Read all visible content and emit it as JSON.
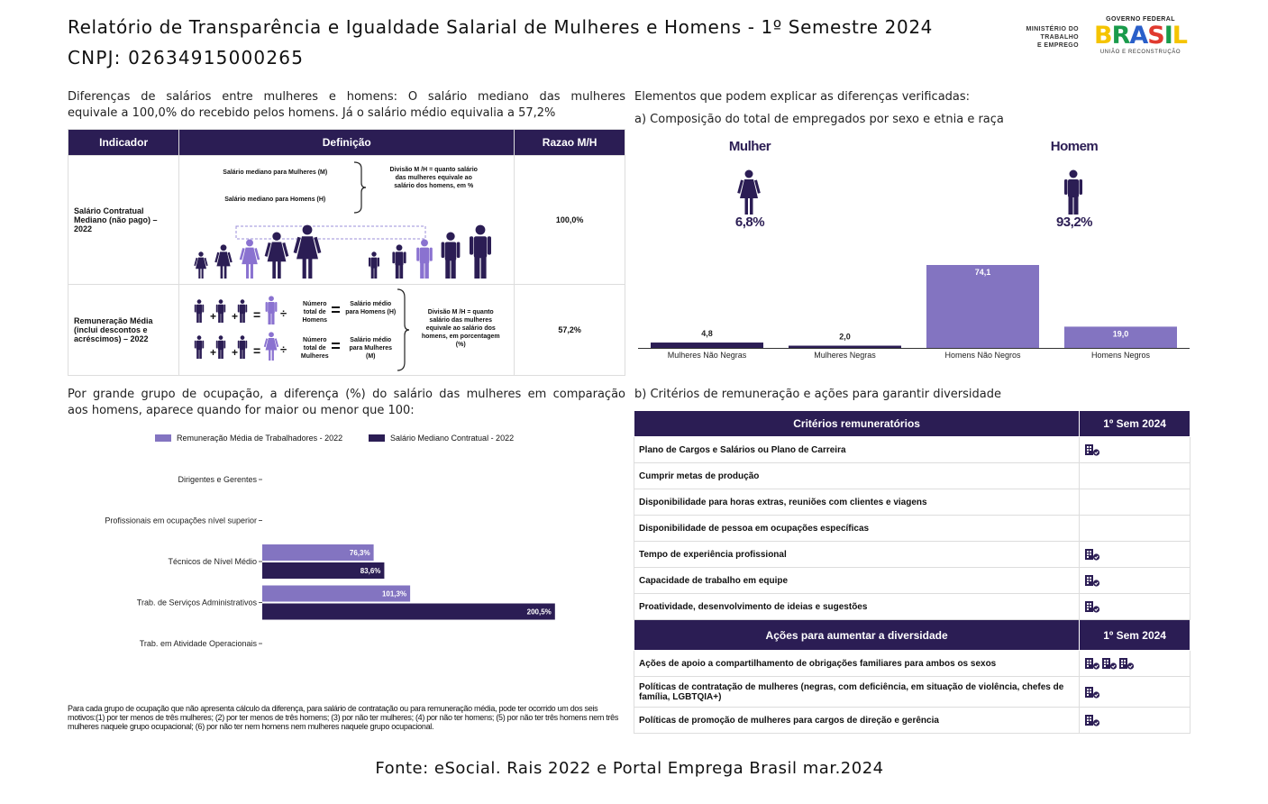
{
  "header": {
    "title": "Relatório de Transparência e Igualdade Salarial de Mulheres e Homens - 1º Semestre 2024",
    "cnpj": "CNPJ: 02634915000265",
    "ministry_lines": [
      "MINISTÉRIO DO",
      "TRABALHO",
      "E EMPREGO"
    ],
    "logo_top": "GOVERNO FEDERAL",
    "logo_word": "BRASIL",
    "logo_sub": "UNIÃO E RECONSTRUÇÃO",
    "logo_colors": [
      "#f5c400",
      "#1a9b4b",
      "#2a5fc9",
      "#e03a2f",
      "#1a9b4b",
      "#f5c400"
    ]
  },
  "left": {
    "intro_lines": [
      "Diferenças de salários entre mulheres e homens: O salário mediano das mulheres",
      "equivale a 100,0% do recebido pelos homens. Já o salário médio equivalia a 57,2%"
    ],
    "table": {
      "headers": [
        "Indicador",
        "Definição",
        "Razao M/H"
      ],
      "row1": {
        "indicator": "Salário Contratual Mediano (não pago) – 2022",
        "def_m": "Salário mediano para Mulheres (M)",
        "def_h": "Salário mediano para Homens (H)",
        "def_div": "Divisão M /H = quanto salário das mulheres equivale ao salário dos homens, em %",
        "ratio": "100,0%"
      },
      "row2": {
        "indicator": "Remuneração Média (inclui descontos e acréscimos) – 2022",
        "count_h": "Número total de Homens",
        "avg_h": "Salário médio para Homens (H)",
        "count_m": "Número total de Mulheres",
        "avg_m": "Salário médio para Mulheres (M)",
        "def_div": "Divisão M /H = quanto salário das mulheres equivale ao salário dos homens, em porcentagem (%)",
        "ratio": "57,2%"
      }
    },
    "occupation_intro_lines": [
      "Por grande grupo de ocupação, a diferença (%) do salário das mulheres em comparação",
      "aos homens, aparece quando for maior ou menor que 100:"
    ],
    "note": "Para cada grupo de ocupação que não apresenta cálculo da diferença, para salário de contratação ou para remuneração média, pode ter ocorrido um dos seis motivos:(1) por ter menos de três mulheres; (2) por ter menos de três homens; (3) por não ter mulheres; (4) por não ter homens; (5) por não ter três homens nem três mulheres naquele grupo ocupacional; (6) por não ter nem homens nem mulheres naquele grupo ocupacional."
  },
  "right": {
    "heading": "Elementos que podem explicar as diferenças verificadas:",
    "sub_a": "a) Composição do total de empregados por sexo e etnia e raça",
    "women_label": "Mulher",
    "women_pct": "6,8%",
    "men_label": "Homem",
    "men_pct": "93,2%",
    "sub_b": "b) Critérios de remuneração e ações para garantir diversidade",
    "criteria_header": "Critérios remuneratórios",
    "period_header": "1º Sem 2024",
    "criteria": [
      {
        "label": "Plano de Cargos e Salários ou Plano de Carreira",
        "icons": 1
      },
      {
        "label": "Cumprir metas de produção",
        "icons": 0
      },
      {
        "label": "Disponibilidade para horas extras, reuniões com clientes e viagens",
        "icons": 0
      },
      {
        "label": "Disponibilidade de pessoa em ocupações específicas",
        "icons": 0
      },
      {
        "label": "Tempo de experiência profissional",
        "icons": 1
      },
      {
        "label": "Capacidade de trabalho em equipe",
        "icons": 1
      },
      {
        "label": "Proatividade, desenvolvimento de ideias e sugestões",
        "icons": 1
      }
    ],
    "actions_header": "Ações para aumentar a diversidade",
    "actions": [
      {
        "label": "Ações de apoio a compartilhamento de obrigações familiares para ambos os sexos",
        "icons": 3
      },
      {
        "label": "Políticas de contratação de mulheres (negras, com deficiência, em situação de violência, chefes de família, LGBTQIA+)",
        "icons": 1
      },
      {
        "label": "Políticas de promoção de mulheres para cargos de direção e gerência",
        "icons": 1
      }
    ]
  },
  "colors": {
    "dark": "#2b1d54",
    "light": "#8374c1",
    "figure_dark": "#2b1d54",
    "figure_light": "#8a72d0"
  },
  "chart_data": [
    {
      "type": "bar",
      "categories": [
        "Mulheres Não Negras",
        "Mulheres Negras",
        "Homens Não Negros",
        "Homens Negros"
      ],
      "values": [
        4.8,
        2.0,
        74.1,
        19.0
      ],
      "value_labels": [
        "4,8",
        "2,0",
        "74,1",
        "19,0"
      ],
      "colors": [
        "#2b1d54",
        "#2b1d54",
        "#8374c1",
        "#8374c1"
      ],
      "ylim": [
        0,
        74.1
      ]
    },
    {
      "type": "bar",
      "orientation": "horizontal",
      "categories": [
        "Dirigentes e Gerentes",
        "Profissionais em ocupações nível superior",
        "Técnicos de Nível Médio",
        "Trab. de Serviços Administrativos",
        "Trab. em Atividade Operacionais"
      ],
      "series": [
        {
          "name": "Remuneração Média de Trabalhadores - 2022",
          "values": [
            null,
            null,
            76.3,
            101.3,
            null
          ],
          "labels": [
            "",
            "",
            "76,3%",
            "101,3%",
            ""
          ],
          "color": "#8374c1"
        },
        {
          "name": "Salário Mediano Contratual - 2022",
          "values": [
            null,
            null,
            83.6,
            200.5,
            null
          ],
          "labels": [
            "",
            "",
            "83,6%",
            "200,5%",
            ""
          ],
          "color": "#2b1d54"
        }
      ],
      "legend": "top"
    }
  ]
}
